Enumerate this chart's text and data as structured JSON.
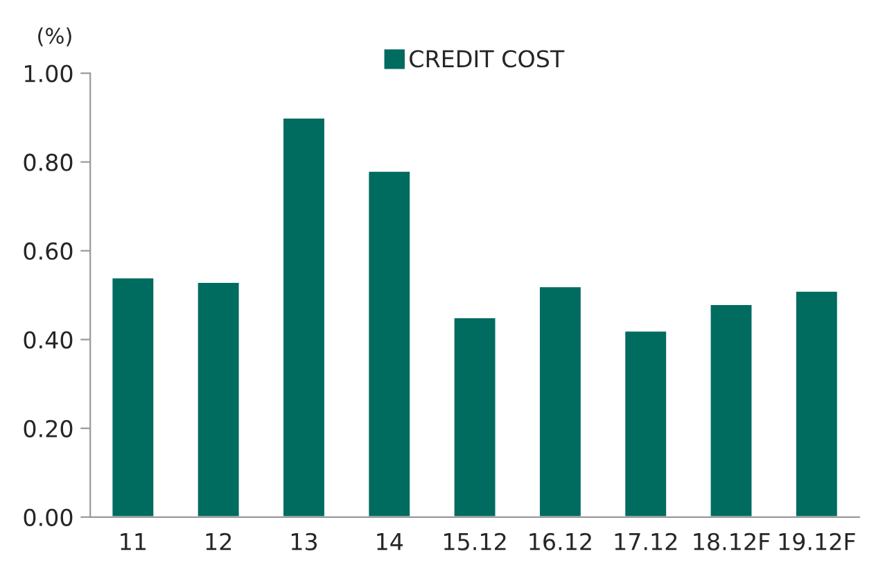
{
  "chart_data": {
    "type": "bar",
    "ylabel": "(%)",
    "categories": [
      "11",
      "12",
      "13",
      "14",
      "15.12",
      "16.12",
      "17.12",
      "18.12F",
      "19.12F"
    ],
    "series": [
      {
        "name": "CREDIT COST",
        "color": "#006b5f",
        "values": [
          0.54,
          0.53,
          0.9,
          0.78,
          0.45,
          0.52,
          0.42,
          0.48,
          0.51
        ]
      }
    ],
    "ylim": [
      0,
      1
    ],
    "yticks": [
      {
        "value": 0,
        "label": "0.00"
      },
      {
        "value": 0.2,
        "label": "0.20"
      },
      {
        "value": 0.4,
        "label": "0.40"
      },
      {
        "value": 0.6,
        "label": "0.60"
      },
      {
        "value": 0.8,
        "label": "0.80"
      },
      {
        "value": 1,
        "label": "1.00"
      }
    ],
    "legend": "top",
    "grid": false
  }
}
